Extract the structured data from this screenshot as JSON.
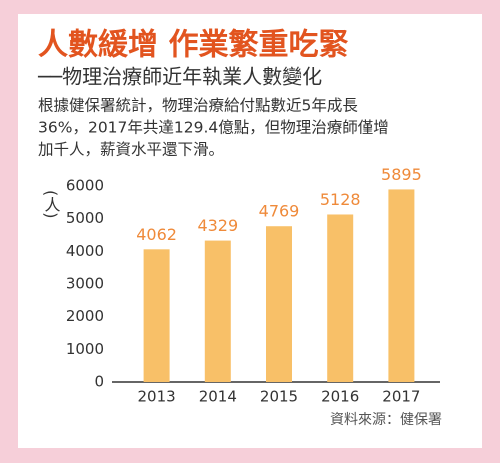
{
  "chart_data": {
    "type": "bar",
    "title": "人數緩增 作業繁重吃緊",
    "subtitle": "──物理治療師近年執業人數變化",
    "description": [
      "根據健保署統計，物理治療給付點數近5年成長",
      "36%，2017年共達129.4億點，但物理治療師僅增",
      "加千人，薪資水平還下滑。"
    ],
    "y_label": "(人)",
    "source": "資料來源：健保署",
    "categories": [
      "2013",
      "2014",
      "2015",
      "2016",
      "2017"
    ],
    "values": [
      4062,
      4329,
      4769,
      5128,
      5895
    ],
    "color": "#f8c068",
    "label_color": "#ef8a3a",
    "ylim": [
      0,
      6000
    ],
    "yticks": [
      0,
      1000,
      2000,
      3000,
      4000,
      5000,
      6000
    ],
    "grid": false
  }
}
